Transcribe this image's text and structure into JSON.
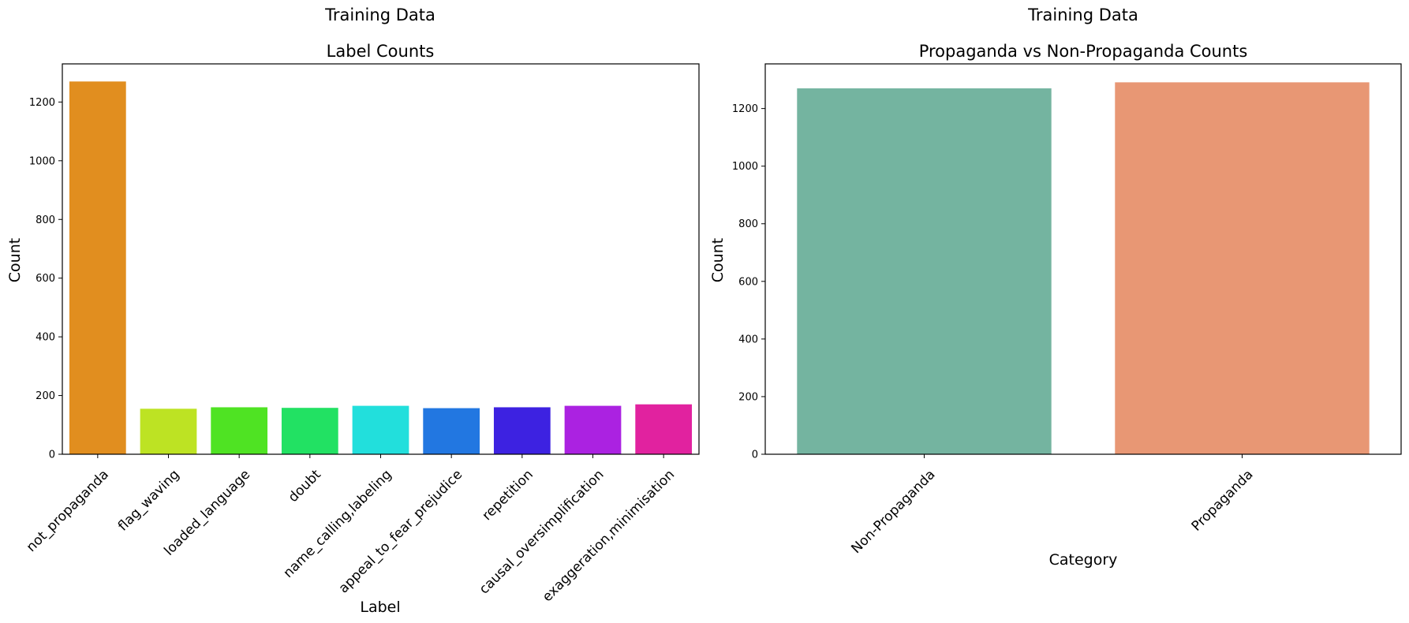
{
  "chart_data": [
    {
      "type": "bar",
      "suptitle": "Training Data",
      "title": "Label Counts",
      "xlabel": "Label",
      "ylabel": "Count",
      "categories": [
        "not_propaganda",
        "flag_waving",
        "loaded_language",
        "doubt",
        "name_calling,labeling",
        "appeal_to_fear_prejudice",
        "repetition",
        "causal_oversimplification",
        "exaggeration,minimisation"
      ],
      "values": [
        1270,
        155,
        160,
        158,
        165,
        157,
        160,
        165,
        170
      ],
      "colors": [
        "#e18e1f",
        "#bde323",
        "#4fe323",
        "#22e163",
        "#22dfdc",
        "#2277e1",
        "#3d22e1",
        "#ab22e1",
        "#e1229f"
      ],
      "ylim": [
        0,
        1330
      ],
      "yticks": [
        0,
        200,
        400,
        600,
        800,
        1000,
        1200
      ],
      "grid": false
    },
    {
      "type": "bar",
      "suptitle": "Training Data",
      "title": "Propaganda vs Non-Propaganda Counts",
      "xlabel": "Category",
      "ylabel": "Count",
      "categories": [
        "Non-Propaganda",
        "Propaganda"
      ],
      "values": [
        1270,
        1291
      ],
      "colors": [
        "#74b4a0",
        "#e89774"
      ],
      "ylim": [
        0,
        1355
      ],
      "yticks": [
        0,
        200,
        400,
        600,
        800,
        1000,
        1200
      ],
      "grid": false
    }
  ]
}
